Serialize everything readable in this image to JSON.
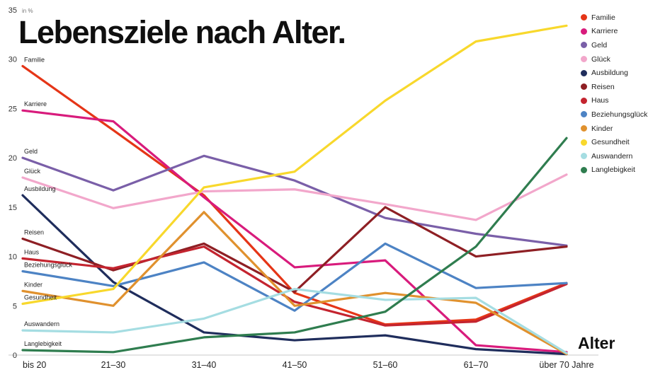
{
  "chart_data": {
    "type": "line",
    "title": "Lebensziele nach Alter.",
    "xlabel": "Alter",
    "ylabel": "in %",
    "ylim": [
      0,
      35
    ],
    "yticks": [
      0,
      5,
      10,
      15,
      20,
      25,
      30,
      35
    ],
    "grid": false,
    "legend_position": "top-right",
    "categories": [
      "bis 20",
      "21–30",
      "31–40",
      "41–50",
      "51–60",
      "61–70",
      "über 70 Jahre"
    ],
    "series": [
      {
        "name": "Familie",
        "color": "#e53517",
        "values": [
          29.3,
          22.8,
          16.2,
          6.3,
          3.1,
          3.6,
          7.3
        ]
      },
      {
        "name": "Karriere",
        "color": "#d81b7c",
        "values": [
          24.8,
          23.7,
          16.0,
          8.9,
          9.6,
          1.0,
          0.3
        ]
      },
      {
        "name": "Geld",
        "color": "#7a5fa8",
        "values": [
          20.0,
          16.7,
          20.2,
          17.7,
          13.9,
          12.3,
          11.1
        ]
      },
      {
        "name": "Glück",
        "color": "#f2a7cb",
        "values": [
          18.0,
          14.9,
          16.6,
          16.8,
          15.3,
          13.7,
          18.3
        ]
      },
      {
        "name": "Ausbildung",
        "color": "#1f2d5c",
        "values": [
          16.2,
          7.4,
          2.3,
          1.5,
          2.0,
          0.6,
          0.1
        ]
      },
      {
        "name": "Reisen",
        "color": "#8e1f24",
        "values": [
          11.8,
          8.6,
          11.3,
          6.4,
          15.0,
          10.0,
          11.0
        ]
      },
      {
        "name": "Haus",
        "color": "#c4242f",
        "values": [
          9.8,
          8.8,
          11.0,
          5.4,
          3.0,
          3.4,
          7.2
        ]
      },
      {
        "name": "Beziehungsglück",
        "color": "#4d83c4",
        "values": [
          8.5,
          7.0,
          9.4,
          4.5,
          11.3,
          6.8,
          7.3
        ]
      },
      {
        "name": "Kinder",
        "color": "#e0912e",
        "values": [
          6.5,
          5.0,
          14.5,
          5.0,
          6.3,
          5.3,
          0.1
        ]
      },
      {
        "name": "Gesundheit",
        "color": "#f8d82c",
        "values": [
          5.2,
          6.7,
          17.0,
          18.6,
          25.8,
          31.8,
          33.4
        ]
      },
      {
        "name": "Auswandern",
        "color": "#a5dde2",
        "values": [
          2.5,
          2.3,
          3.7,
          6.7,
          5.6,
          5.8,
          0.2
        ]
      },
      {
        "name": "Langlebigkeit",
        "color": "#2f7d4f",
        "values": [
          0.5,
          0.3,
          1.8,
          2.3,
          4.4,
          11.0,
          22.0
        ]
      }
    ]
  }
}
